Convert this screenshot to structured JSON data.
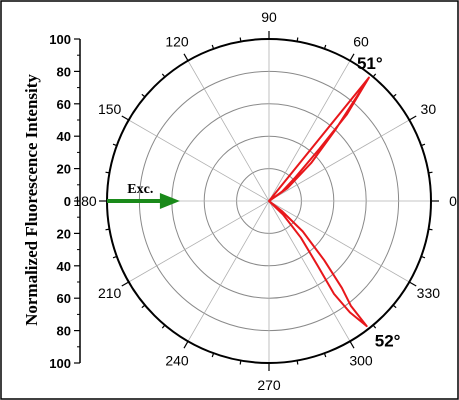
{
  "chart_data": {
    "type": "polar-line",
    "ylabel": "Normalized Fluorescence Intensity",
    "radial_range": [
      0,
      100
    ],
    "radial_ticks": [
      100,
      80,
      60,
      40,
      20,
      0,
      20,
      40,
      60,
      80,
      100
    ],
    "radial_rings": [
      20,
      40,
      60,
      80,
      100
    ],
    "angle_ticks": [
      0,
      30,
      60,
      90,
      120,
      150,
      180,
      210,
      240,
      270,
      300,
      330
    ],
    "grid": true,
    "series": [
      {
        "color": "#e8171b",
        "points": [
          {
            "angle": 0,
            "r": 0
          },
          {
            "angle": 51,
            "r": 98
          },
          {
            "angle": 48,
            "r": 72
          },
          {
            "angle": 46,
            "r": 45
          },
          {
            "angle": 42,
            "r": 22
          },
          {
            "angle": 36,
            "r": 10
          },
          {
            "angle": 0,
            "r": 0
          },
          {
            "angle": 35,
            "r": 14
          },
          {
            "angle": 42,
            "r": 35
          },
          {
            "angle": 47,
            "r": 60
          },
          {
            "angle": 50,
            "r": 85
          },
          {
            "angle": 51,
            "r": 98
          },
          {
            "angle": 0,
            "r": 0
          },
          {
            "angle": 322,
            "r": 10
          },
          {
            "angle": 318,
            "r": 28
          },
          {
            "angle": 313,
            "r": 50
          },
          {
            "angle": 310,
            "r": 70
          },
          {
            "angle": 308,
            "r": 82
          },
          {
            "angle": 308,
            "r": 98
          },
          {
            "angle": 306,
            "r": 85
          },
          {
            "angle": 305,
            "r": 70
          },
          {
            "angle": 307,
            "r": 50
          },
          {
            "angle": 311,
            "r": 30
          },
          {
            "angle": 316,
            "r": 12
          },
          {
            "angle": 0,
            "r": 0
          }
        ]
      }
    ],
    "annotations": [
      {
        "text": "51°",
        "angle": 51,
        "r": 100
      },
      {
        "text": "52°",
        "angle": 308,
        "r": 100
      },
      {
        "text": "Exc.",
        "angle": 180,
        "r": 85
      }
    ],
    "arrow": {
      "angle": 180,
      "r_from": 100,
      "r_to": 55,
      "color": "#1a8a1a"
    }
  }
}
